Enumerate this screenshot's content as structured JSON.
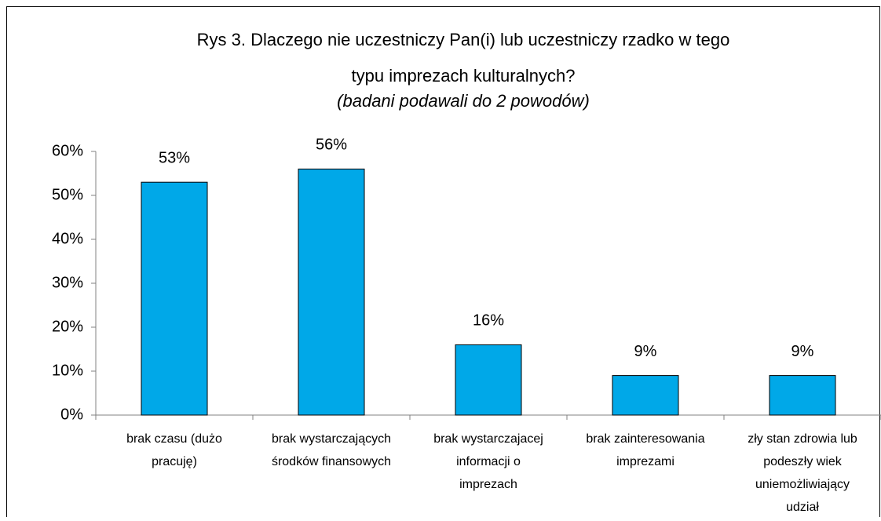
{
  "chart_data": {
    "type": "bar",
    "title": [
      "Rys 3. Dlaczego nie uczestniczy Pan(i) lub uczestniczy rzadko w tego",
      "typu imprezach kulturalnych?"
    ],
    "subtitle": "(badani podawali do 2 powodów)",
    "categories": [
      [
        "brak czasu (dużo",
        "pracuję)"
      ],
      [
        "brak wystarczających",
        "środków finansowych"
      ],
      [
        "brak wystarczajacej",
        "informacji o",
        "imprezach"
      ],
      [
        "brak zainteresowania",
        "imprezami"
      ],
      [
        "zły stan zdrowia lub",
        "podeszły wiek",
        "uniemożliwiający",
        "udział"
      ]
    ],
    "values": [
      53,
      56,
      16,
      9,
      9
    ],
    "value_labels": [
      "53%",
      "56%",
      "16%",
      "9%",
      "9%"
    ],
    "color": "#00a8e8",
    "ylim": [
      0,
      60
    ],
    "yticks": [
      {
        "value": 0,
        "label": "0%"
      },
      {
        "value": 10,
        "label": "10%"
      },
      {
        "value": 20,
        "label": "20%"
      },
      {
        "value": 30,
        "label": "30%"
      },
      {
        "value": 40,
        "label": "40%"
      },
      {
        "value": 50,
        "label": "50%"
      },
      {
        "value": 60,
        "label": "60%"
      }
    ],
    "grid": false
  }
}
